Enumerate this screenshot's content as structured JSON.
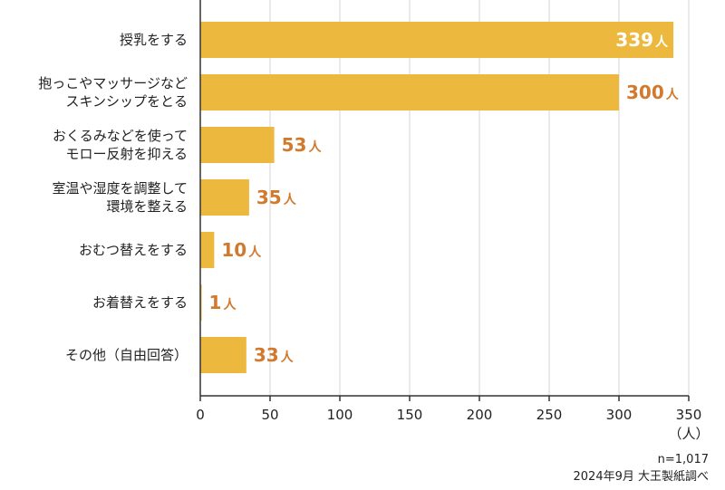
{
  "chart_data": {
    "type": "bar",
    "orientation": "horizontal",
    "categories": [
      [
        "授乳をする"
      ],
      [
        "抱っこやマッサージなど",
        "スキンシップをとる"
      ],
      [
        "おくるみなどを使って",
        "モロー反射を抑える"
      ],
      [
        "室温や湿度を調整して",
        "環境を整える"
      ],
      [
        "おむつ替えをする"
      ],
      [
        "お着替えをする"
      ],
      [
        "その他（自由回答）"
      ]
    ],
    "values": [
      339,
      300,
      53,
      35,
      10,
      1,
      33
    ],
    "value_unit": "人",
    "xlim": [
      0,
      350
    ],
    "xticks": [
      0,
      50,
      100,
      150,
      200,
      250,
      300,
      350
    ],
    "xunit": "（人）",
    "grid": true,
    "bar_color": "#EDB83E",
    "label_color": "#D17A2E",
    "inside_label_color": "#FFFFFF"
  },
  "notes": {
    "sample": "n=1,017",
    "source": "2024年9月 大王製紙調べ"
  }
}
